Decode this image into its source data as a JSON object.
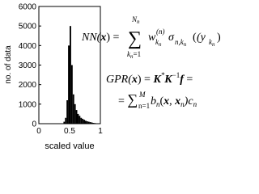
{
  "chart_data": {
    "type": "histogram",
    "xlabel": "scaled value",
    "ylabel": "no. of data",
    "bins": [
      0.4,
      0.425,
      0.45,
      0.475,
      0.5,
      0.525,
      0.55,
      0.575,
      0.6,
      0.625,
      0.65,
      0.675,
      0.7,
      0.725,
      0.75,
      0.775,
      0.8,
      0.825,
      0.85,
      0.875,
      0.9,
      0.925,
      0.95,
      0.975,
      1.0
    ],
    "values": [
      100,
      300,
      1200,
      4000,
      5000,
      3000,
      1500,
      1000,
      700,
      500,
      400,
      300,
      250,
      200,
      150,
      120,
      100,
      80,
      60,
      40,
      30,
      20,
      15,
      10
    ],
    "color": "#000000",
    "xlim": [
      0,
      1
    ],
    "xticks": [
      0,
      0.5,
      1
    ],
    "ylim": [
      0,
      6000
    ],
    "yticks": [
      0,
      1000,
      2000,
      3000,
      4000,
      5000,
      6000
    ],
    "equations": {
      "nn": {
        "lhs_a": "NN(",
        "lhs_x": "x",
        "lhs_b": ") =",
        "sum": "∑",
        "upper": "N",
        "upper_sub": "n",
        "lower": "k",
        "lower_sub": "n",
        "lower_rest": "=1",
        "w": "w",
        "w_sub": "k",
        "w_sub_sub": "n",
        "w_sup": "(n)",
        "sigma": "σ",
        "sigma_sub": "n,k",
        "sigma_sub_sub": "n",
        "arg": "(y",
        "arg_sub": "k",
        "arg_sub_sub": "n",
        "close": ")"
      },
      "gpr": {
        "a": "GPR(",
        "x": "x",
        "b": ") = ",
        "k1": "K",
        "k1_sup": "*",
        "k2": "K",
        "k2_sup": "−1",
        "f": "f",
        "eq": " =",
        "l2_eq": "= ",
        "sum": "∑",
        "sum_sub": "n=1",
        "sum_sup": "M",
        "bn": "b",
        "bn_sub": "n",
        "open": "(",
        "x1": "x",
        "comma": ", ",
        "x2": "x",
        "x2_sub": "n",
        "close": ")c",
        "c_sub": "n"
      }
    }
  }
}
